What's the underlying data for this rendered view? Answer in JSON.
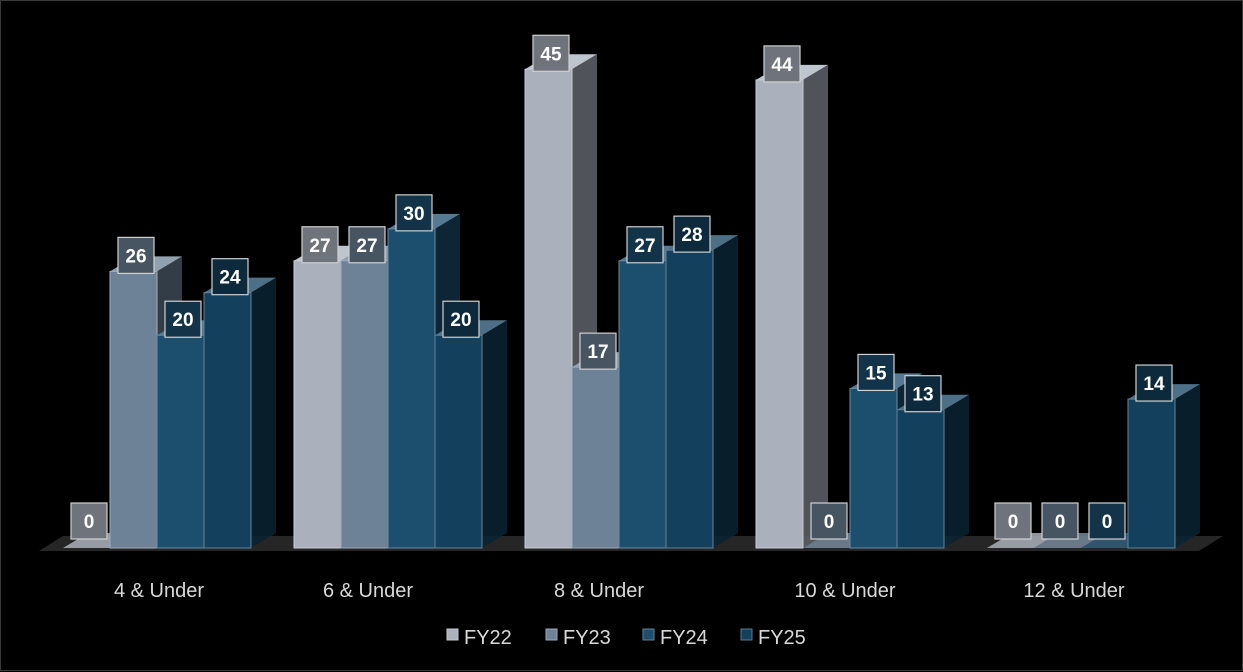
{
  "chart_data": {
    "type": "bar",
    "categories": [
      "4 & Under",
      "6 & Under",
      "8 & Under",
      "10 & Under",
      "12 & Under"
    ],
    "series": [
      {
        "name": "FY22",
        "values": [
          0,
          27,
          45,
          44,
          0
        ]
      },
      {
        "name": "FY23",
        "values": [
          26,
          27,
          17,
          0,
          0
        ]
      },
      {
        "name": "FY24",
        "values": [
          20,
          30,
          27,
          15,
          0
        ]
      },
      {
        "name": "FY25",
        "values": [
          24,
          20,
          28,
          13,
          14
        ]
      }
    ],
    "title": "",
    "xlabel": "",
    "ylabel": "",
    "ylim": [
      0,
      47
    ],
    "grid": false,
    "legend": "bottom",
    "style": "3d-clustered-column",
    "background": "#000000",
    "colors": {
      "FY22": "#aab1bd",
      "FY23": "#6d8296",
      "FY24": "#1c4e6e",
      "FY25": "#13405d"
    }
  }
}
